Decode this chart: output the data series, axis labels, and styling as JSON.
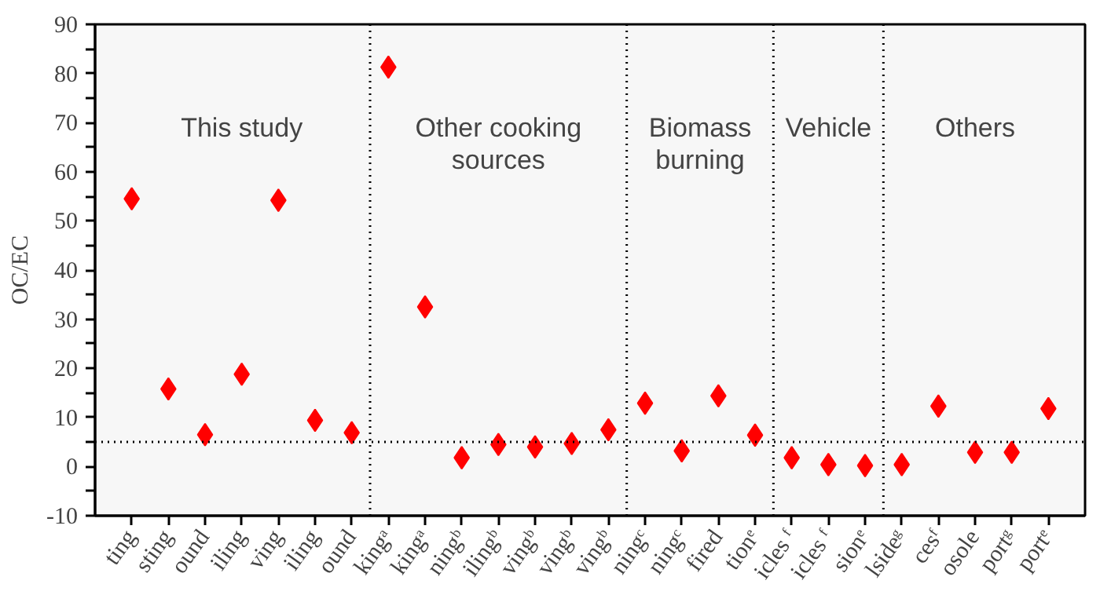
{
  "chart_data": {
    "type": "scatter",
    "ylabel": "OC/EC",
    "categories": [
      "ting",
      "sting",
      "ound",
      "iling",
      "ving",
      "iling",
      "ound",
      "kingᵃ",
      "kingᵃ",
      "ningᵇ",
      "ilingᵇ",
      "vingᵇ",
      "vingᵇ",
      "vingᵇ",
      "ningᶜ",
      "ningᶜ",
      "fired",
      "tionᵉ",
      "icles ᶠ",
      "icles ᶠ",
      "sionᵉ",
      "lsideᵍ",
      "cesᶠ",
      "osole",
      "portᵍ",
      "portᵉ"
    ],
    "series": [
      {
        "color": "#ff0000",
        "values": [
          54.5,
          15.8,
          6.5,
          18.8,
          54.2,
          9.4,
          6.9,
          81.3,
          32.5,
          1.8,
          4.5,
          4.0,
          4.7,
          7.5,
          12.9,
          3.2,
          14.4,
          6.4,
          1.8,
          0.4,
          0.2,
          0.4,
          12.3,
          2.9,
          2.9,
          11.8
        ]
      }
    ],
    "marker": "diamond",
    "ylim": [
      -10,
      90
    ],
    "yticks": [
      -10,
      {
        "value": -5,
        "label": null
      },
      0,
      {
        "value": 5,
        "label": null
      },
      10,
      {
        "value": 15,
        "label": null
      },
      20,
      {
        "value": 25,
        "label": null
      },
      30,
      {
        "value": 35,
        "label": null
      },
      40,
      {
        "value": 45,
        "label": null
      },
      50,
      {
        "value": 55,
        "label": null
      },
      60,
      {
        "value": 65,
        "label": null
      },
      70,
      {
        "value": 75,
        "label": null
      },
      80,
      {
        "value": 85,
        "label": null
      },
      90
    ],
    "ref_lines": [
      {
        "axis": "y",
        "value": 5,
        "line_style": "dotted",
        "color": "#000000"
      }
    ],
    "annotations": [
      "This study",
      "Other cooking sources",
      "Biomass burning",
      "Vehicle",
      "Others"
    ],
    "grid": false
  }
}
